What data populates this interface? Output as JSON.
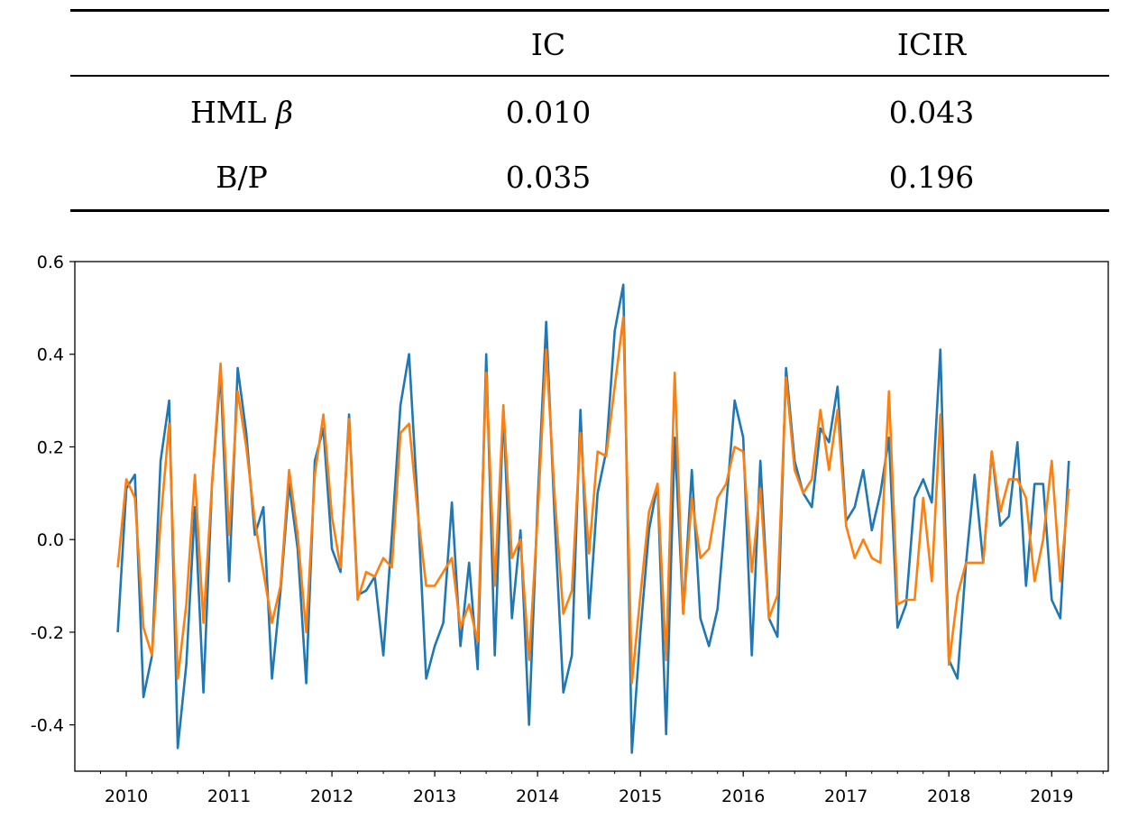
{
  "table": {
    "headers": [
      "",
      "IC",
      "ICIR"
    ],
    "rows": [
      {
        "label": "HML",
        "symbol": "β",
        "ic": "0.010",
        "icir": "0.043"
      },
      {
        "label": "B/P",
        "symbol": "",
        "ic": "0.035",
        "icir": "0.196"
      }
    ]
  },
  "chart_data": {
    "type": "line",
    "title": "",
    "xlabel": "",
    "ylabel": "",
    "ylim": [
      -0.5,
      0.6
    ],
    "xlim": [
      2009.5,
      2019.55
    ],
    "yticks": [
      "-0.4",
      "-0.2",
      "0.0",
      "0.2",
      "0.4",
      "0.6"
    ],
    "xticks": [
      "2010",
      "2011",
      "2012",
      "2013",
      "2014",
      "2015",
      "2016",
      "2017",
      "2018",
      "2019"
    ],
    "grid": false,
    "legend": "none",
    "x_start": 2009.917,
    "x_step_months": 1,
    "series": [
      {
        "color": "#1f77b4",
        "values": [
          -0.2,
          0.11,
          0.14,
          -0.34,
          -0.25,
          0.17,
          0.3,
          -0.45,
          -0.27,
          0.07,
          -0.33,
          0.12,
          0.36,
          -0.09,
          0.37,
          0.23,
          0.01,
          0.07,
          -0.3,
          -0.11,
          0.12,
          -0.02,
          -0.31,
          0.17,
          0.24,
          -0.02,
          -0.07,
          0.27,
          -0.12,
          -0.11,
          -0.08,
          -0.25,
          0.01,
          0.29,
          0.4,
          0.08,
          -0.3,
          -0.23,
          -0.18,
          0.08,
          -0.23,
          -0.05,
          -0.28,
          0.4,
          -0.25,
          0.28,
          -0.17,
          0.02,
          -0.4,
          0.08,
          0.47,
          0.04,
          -0.33,
          -0.25,
          0.28,
          -0.17,
          0.1,
          0.19,
          0.45,
          0.55,
          -0.46,
          -0.2,
          0.02,
          0.12,
          -0.42,
          0.22,
          -0.16,
          0.15,
          -0.17,
          -0.23,
          -0.15,
          0.07,
          0.3,
          0.22,
          -0.25,
          0.17,
          -0.17,
          -0.21,
          0.37,
          0.17,
          0.1,
          0.07,
          0.24,
          0.21,
          0.33,
          0.04,
          0.07,
          0.15,
          0.02,
          0.1,
          0.22,
          -0.19,
          -0.14,
          0.09,
          0.13,
          0.08,
          0.41,
          -0.26,
          -0.3,
          -0.05,
          0.14,
          -0.05,
          0.19,
          0.03,
          0.05,
          0.21,
          -0.1,
          0.12,
          0.12,
          -0.13,
          -0.17,
          0.17
        ]
      },
      {
        "color": "#ff7f0e",
        "values": [
          -0.06,
          0.13,
          0.09,
          -0.19,
          -0.25,
          0.04,
          0.25,
          -0.3,
          -0.14,
          0.14,
          -0.18,
          0.12,
          0.38,
          0.01,
          0.32,
          0.2,
          0.04,
          -0.07,
          -0.18,
          -0.1,
          0.15,
          0.01,
          -0.2,
          0.14,
          0.27,
          0.05,
          -0.06,
          0.26,
          -0.13,
          -0.07,
          -0.08,
          -0.04,
          -0.06,
          0.23,
          0.25,
          0.06,
          -0.1,
          -0.1,
          -0.07,
          -0.04,
          -0.19,
          -0.14,
          -0.22,
          0.36,
          -0.1,
          0.29,
          -0.04,
          0.0,
          -0.26,
          0.05,
          0.41,
          0.09,
          -0.16,
          -0.11,
          0.23,
          -0.03,
          0.19,
          0.18,
          0.33,
          0.48,
          -0.31,
          -0.12,
          0.06,
          0.12,
          -0.26,
          0.36,
          -0.16,
          0.09,
          -0.04,
          -0.02,
          0.09,
          0.12,
          0.2,
          0.19,
          -0.07,
          0.11,
          -0.17,
          -0.12,
          0.35,
          0.15,
          0.1,
          0.13,
          0.28,
          0.15,
          0.28,
          0.03,
          -0.04,
          0.0,
          -0.04,
          -0.05,
          0.32,
          -0.14,
          -0.13,
          -0.13,
          0.09,
          -0.09,
          0.27,
          -0.27,
          -0.12,
          -0.05,
          -0.05,
          -0.05,
          0.19,
          0.06,
          0.13,
          0.13,
          0.09,
          -0.09,
          0.0,
          0.17,
          -0.09,
          0.11
        ]
      }
    ]
  }
}
